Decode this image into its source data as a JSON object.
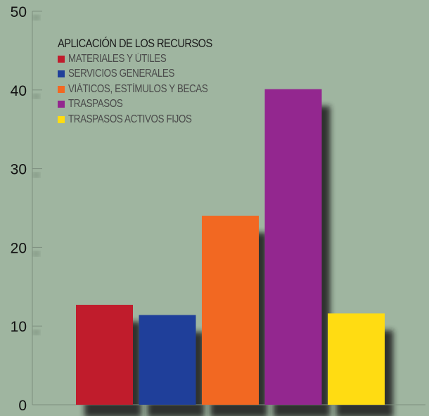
{
  "chart_data": {
    "type": "bar",
    "legend_title": "APLICACIÓN DE LOS RECURSOS",
    "legend_position": "top-left",
    "categories": [
      "MATERIALES Y ÚTILES",
      "SERVICIOS GENERALES",
      "VIÁTICOS, ESTÍMULOS Y BECAS",
      "TRASPASOS",
      "TRASPASOS ACTIVOS FIJOS"
    ],
    "values": [
      12.7,
      11.4,
      24.0,
      40.1,
      11.6
    ],
    "colors": [
      "#c01c2c",
      "#1f3f9a",
      "#f26822",
      "#93278f",
      "#ffdc12"
    ],
    "ylim": [
      0,
      50
    ],
    "y_ticks": [
      0,
      10,
      20,
      30,
      40,
      50
    ],
    "y_tick_labels": [
      "0",
      "10",
      "20",
      "30",
      "40",
      "50"
    ],
    "grid": false,
    "shadow": true
  }
}
